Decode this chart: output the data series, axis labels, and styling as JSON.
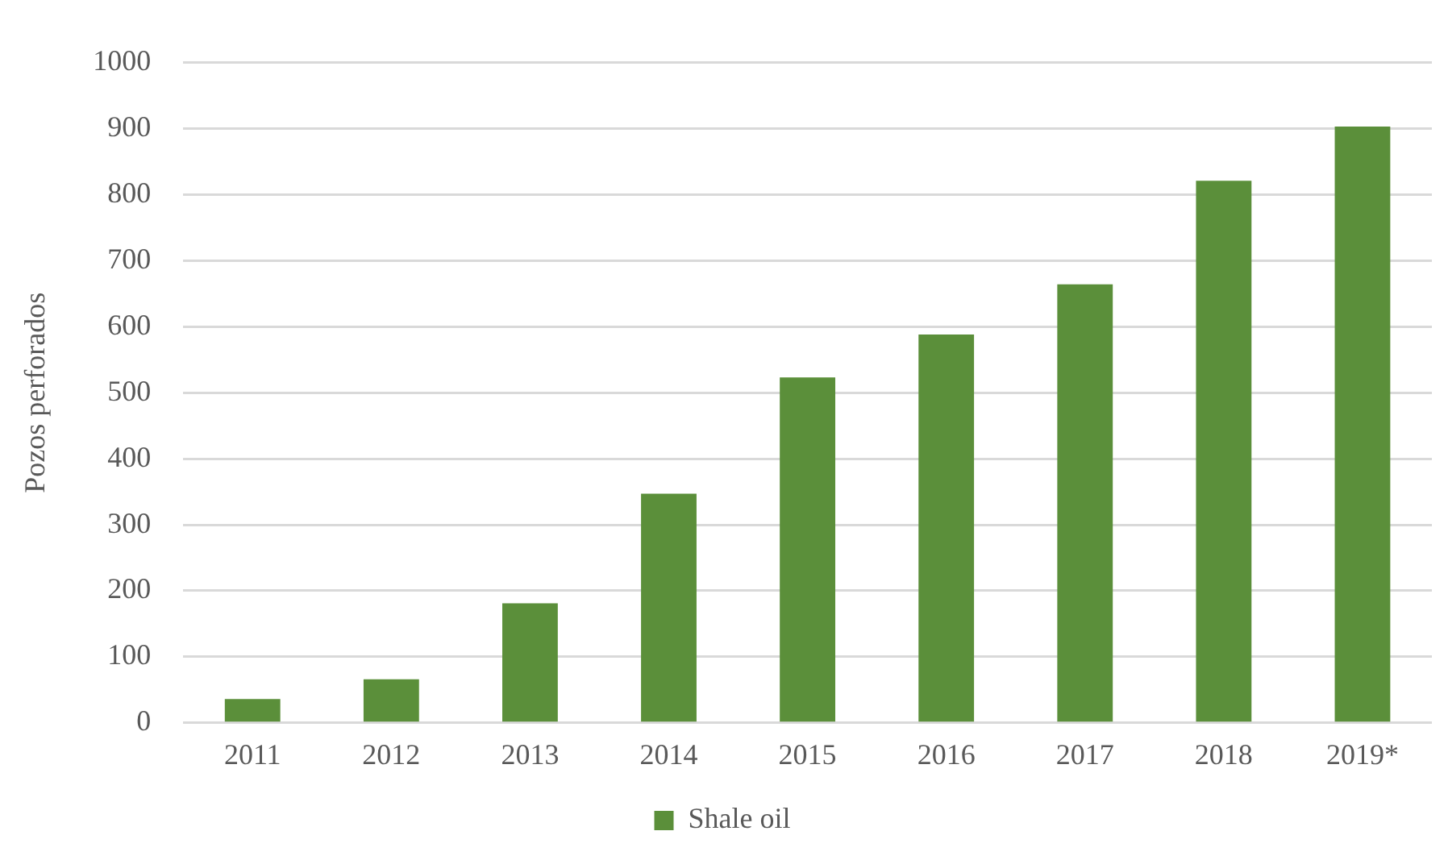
{
  "chart_data": {
    "type": "bar",
    "ylabel": "Pozos perforados",
    "categories": [
      "2011",
      "2012",
      "2013",
      "2014",
      "2015",
      "2016",
      "2017",
      "2018",
      "2019*"
    ],
    "series": [
      {
        "name": "Shale oil",
        "color": "#5b8f3a",
        "values": [
          36,
          66,
          181,
          347,
          523,
          588,
          664,
          821,
          903
        ]
      }
    ],
    "ylim": [
      0,
      1000
    ],
    "yticks": [
      0,
      100,
      200,
      300,
      400,
      500,
      600,
      700,
      800,
      900,
      1000
    ],
    "grid": "y",
    "legend": "bottom"
  }
}
